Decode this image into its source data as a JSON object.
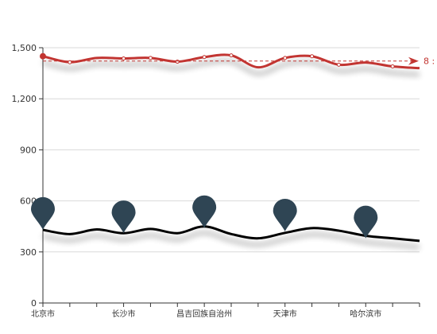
{
  "chart_data": {
    "type": "line",
    "categories": [
      "北京市",
      "北京市",
      "长沙市",
      "长沙市",
      "长沙市",
      "昌吉回族自治州",
      "昌吉回族自治州",
      "天津市",
      "天津市",
      "天津市",
      "哈尔滨市",
      "哈尔滨市",
      "哈尔滨市",
      "哈尔滨市",
      "哈尔滨市"
    ],
    "x_tick_labels": [
      "北京市",
      "长沙市",
      "昌吉回族自治州",
      "天津市",
      "哈尔滨市"
    ],
    "y_tick_labels": [
      "0",
      "300",
      "600",
      "900",
      "1,200",
      "1,500"
    ],
    "ylim": [
      0,
      1500
    ],
    "grid": true,
    "series": [
      {
        "color": "#c23531",
        "values": [
          1450,
          1415,
          1440,
          1437,
          1440,
          1418,
          1445,
          1455,
          1385,
          1440,
          1450,
          1400,
          1413,
          1390,
          1380
        ],
        "markLine": {
          "value": 1422,
          "label": "8 :"
        }
      },
      {
        "color": "#000000",
        "values": [
          430,
          405,
          432,
          410,
          435,
          410,
          450,
          405,
          380,
          412,
          440,
          425,
          395,
          380,
          365
        ]
      }
    ],
    "pins": [
      {
        "category_index": 0,
        "value": 580
      },
      {
        "category_index": 3,
        "value": 560
      },
      {
        "category_index": 6,
        "value": 590
      },
      {
        "category_index": 9,
        "value": 570
      },
      {
        "category_index": 12,
        "value": 530
      }
    ]
  }
}
